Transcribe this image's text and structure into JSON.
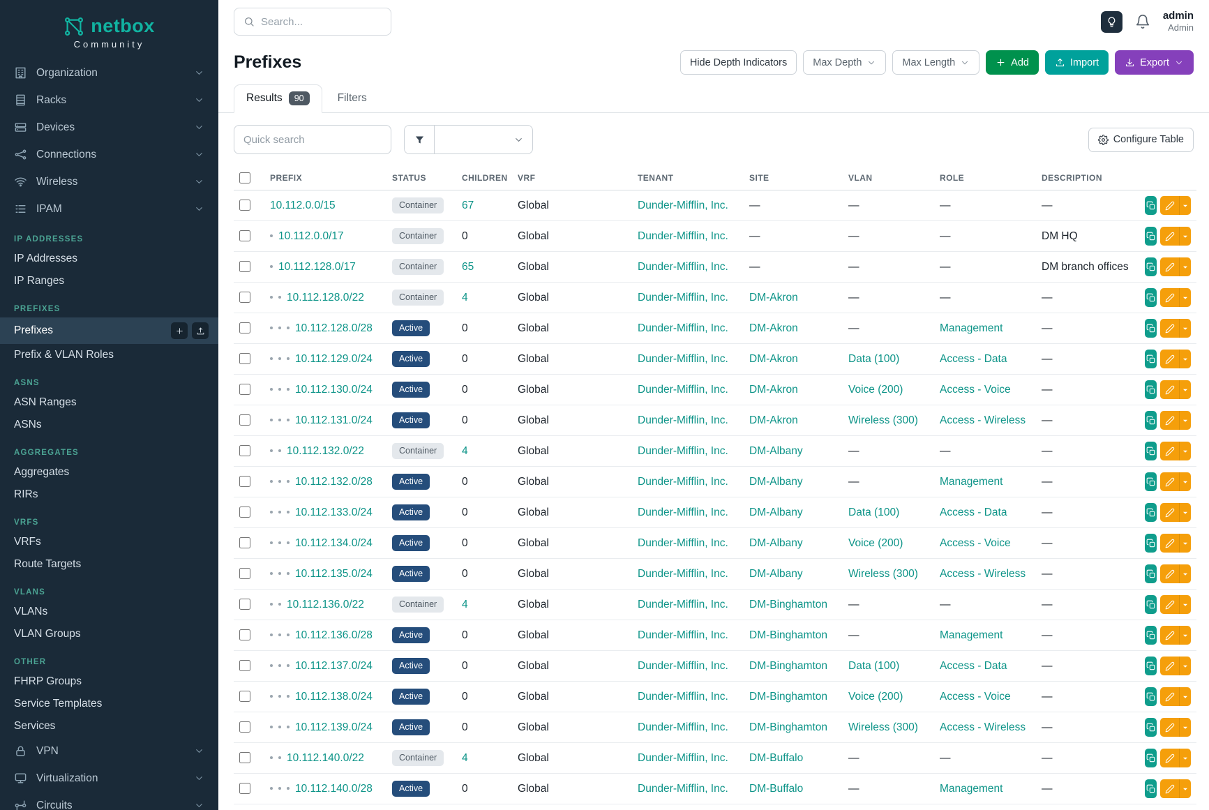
{
  "brand": {
    "name": "netbox",
    "subtitle": "Community",
    "logo_icon": "netbox-logo-icon"
  },
  "topbar": {
    "search_placeholder": "Search...",
    "theme_toggle_icon": "lightbulb-icon",
    "notifications_icon": "bell-icon",
    "user": {
      "name": "admin",
      "role": "Admin"
    }
  },
  "sidebar": {
    "active_item": "Prefixes",
    "top_items": [
      {
        "label": "Organization",
        "icon": "building-icon"
      },
      {
        "label": "Racks",
        "icon": "rack-icon"
      },
      {
        "label": "Devices",
        "icon": "devices-icon"
      },
      {
        "label": "Connections",
        "icon": "connections-icon"
      },
      {
        "label": "Wireless",
        "icon": "wifi-icon"
      },
      {
        "label": "IPAM",
        "icon": "ipam-icon"
      }
    ],
    "sections": [
      {
        "title": "IP ADDRESSES",
        "items": [
          "IP Addresses",
          "IP Ranges"
        ]
      },
      {
        "title": "PREFIXES",
        "items": [
          "Prefixes",
          "Prefix & VLAN Roles"
        ]
      },
      {
        "title": "ASNS",
        "items": [
          "ASN Ranges",
          "ASNs"
        ]
      },
      {
        "title": "AGGREGATES",
        "items": [
          "Aggregates",
          "RIRs"
        ]
      },
      {
        "title": "VRFS",
        "items": [
          "VRFs",
          "Route Targets"
        ]
      },
      {
        "title": "VLANS",
        "items": [
          "VLANs",
          "VLAN Groups"
        ]
      },
      {
        "title": "OTHER",
        "items": [
          "FHRP Groups",
          "Service Templates",
          "Services"
        ]
      }
    ],
    "bottom_items": [
      {
        "label": "VPN",
        "icon": "vpn-icon"
      },
      {
        "label": "Virtualization",
        "icon": "virtualization-icon"
      },
      {
        "label": "Circuits",
        "icon": "circuits-icon"
      }
    ]
  },
  "page": {
    "title": "Prefixes",
    "toolbar": {
      "hide_depth_label": "Hide Depth Indicators",
      "max_depth_label": "Max Depth",
      "max_length_label": "Max Length",
      "add_label": "Add",
      "import_label": "Import",
      "export_label": "Export"
    },
    "tabs": [
      {
        "label": "Results",
        "badge": "90"
      },
      {
        "label": "Filters"
      }
    ],
    "filters": {
      "quick_search_placeholder": "Quick search",
      "configure_table_label": "Configure Table"
    }
  },
  "colors": {
    "accent_teal": "#0d9488",
    "sidebar_bg": "#1a2a38",
    "active_badge": "#254d7b",
    "container_badge_bg": "#e4e8ec",
    "add_green": "#00914d",
    "import_teal": "#00a19b",
    "export_purple": "#8540bb",
    "edit_orange": "#f59f0b"
  },
  "table": {
    "columns": [
      "PREFIX",
      "STATUS",
      "CHILDREN",
      "VRF",
      "TENANT",
      "SITE",
      "VLAN",
      "ROLE",
      "DESCRIPTION"
    ],
    "row_action_icons": [
      "copy-icon",
      "pencil-icon",
      "caret-down-icon"
    ],
    "rows": [
      {
        "depth": 0,
        "prefix": "10.112.0.0/15",
        "status": "Container",
        "children": "67",
        "vrf": "Global",
        "tenant": "Dunder-Mifflin, Inc.",
        "site": "—",
        "vlan": "—",
        "role": "—",
        "description": "—"
      },
      {
        "depth": 1,
        "prefix": "10.112.0.0/17",
        "status": "Container",
        "children": "0",
        "vrf": "Global",
        "tenant": "Dunder-Mifflin, Inc.",
        "site": "—",
        "vlan": "—",
        "role": "—",
        "description": "DM HQ"
      },
      {
        "depth": 1,
        "prefix": "10.112.128.0/17",
        "status": "Container",
        "children": "65",
        "vrf": "Global",
        "tenant": "Dunder-Mifflin, Inc.",
        "site": "—",
        "vlan": "—",
        "role": "—",
        "description": "DM branch offices"
      },
      {
        "depth": 2,
        "prefix": "10.112.128.0/22",
        "status": "Container",
        "children": "4",
        "vrf": "Global",
        "tenant": "Dunder-Mifflin, Inc.",
        "site": "DM-Akron",
        "vlan": "—",
        "role": "—",
        "description": "—"
      },
      {
        "depth": 3,
        "prefix": "10.112.128.0/28",
        "status": "Active",
        "children": "0",
        "vrf": "Global",
        "tenant": "Dunder-Mifflin, Inc.",
        "site": "DM-Akron",
        "vlan": "—",
        "role": "Management",
        "description": "—"
      },
      {
        "depth": 3,
        "prefix": "10.112.129.0/24",
        "status": "Active",
        "children": "0",
        "vrf": "Global",
        "tenant": "Dunder-Mifflin, Inc.",
        "site": "DM-Akron",
        "vlan": "Data (100)",
        "role": "Access - Data",
        "description": "—"
      },
      {
        "depth": 3,
        "prefix": "10.112.130.0/24",
        "status": "Active",
        "children": "0",
        "vrf": "Global",
        "tenant": "Dunder-Mifflin, Inc.",
        "site": "DM-Akron",
        "vlan": "Voice (200)",
        "role": "Access - Voice",
        "description": "—"
      },
      {
        "depth": 3,
        "prefix": "10.112.131.0/24",
        "status": "Active",
        "children": "0",
        "vrf": "Global",
        "tenant": "Dunder-Mifflin, Inc.",
        "site": "DM-Akron",
        "vlan": "Wireless (300)",
        "role": "Access - Wireless",
        "description": "—"
      },
      {
        "depth": 2,
        "prefix": "10.112.132.0/22",
        "status": "Container",
        "children": "4",
        "vrf": "Global",
        "tenant": "Dunder-Mifflin, Inc.",
        "site": "DM-Albany",
        "vlan": "—",
        "role": "—",
        "description": "—"
      },
      {
        "depth": 3,
        "prefix": "10.112.132.0/28",
        "status": "Active",
        "children": "0",
        "vrf": "Global",
        "tenant": "Dunder-Mifflin, Inc.",
        "site": "DM-Albany",
        "vlan": "—",
        "role": "Management",
        "description": "—"
      },
      {
        "depth": 3,
        "prefix": "10.112.133.0/24",
        "status": "Active",
        "children": "0",
        "vrf": "Global",
        "tenant": "Dunder-Mifflin, Inc.",
        "site": "DM-Albany",
        "vlan": "Data (100)",
        "role": "Access - Data",
        "description": "—"
      },
      {
        "depth": 3,
        "prefix": "10.112.134.0/24",
        "status": "Active",
        "children": "0",
        "vrf": "Global",
        "tenant": "Dunder-Mifflin, Inc.",
        "site": "DM-Albany",
        "vlan": "Voice (200)",
        "role": "Access - Voice",
        "description": "—"
      },
      {
        "depth": 3,
        "prefix": "10.112.135.0/24",
        "status": "Active",
        "children": "0",
        "vrf": "Global",
        "tenant": "Dunder-Mifflin, Inc.",
        "site": "DM-Albany",
        "vlan": "Wireless (300)",
        "role": "Access - Wireless",
        "description": "—"
      },
      {
        "depth": 2,
        "prefix": "10.112.136.0/22",
        "status": "Container",
        "children": "4",
        "vrf": "Global",
        "tenant": "Dunder-Mifflin, Inc.",
        "site": "DM-Binghamton",
        "vlan": "—",
        "role": "—",
        "description": "—"
      },
      {
        "depth": 3,
        "prefix": "10.112.136.0/28",
        "status": "Active",
        "children": "0",
        "vrf": "Global",
        "tenant": "Dunder-Mifflin, Inc.",
        "site": "DM-Binghamton",
        "vlan": "—",
        "role": "Management",
        "description": "—"
      },
      {
        "depth": 3,
        "prefix": "10.112.137.0/24",
        "status": "Active",
        "children": "0",
        "vrf": "Global",
        "tenant": "Dunder-Mifflin, Inc.",
        "site": "DM-Binghamton",
        "vlan": "Data (100)",
        "role": "Access - Data",
        "description": "—"
      },
      {
        "depth": 3,
        "prefix": "10.112.138.0/24",
        "status": "Active",
        "children": "0",
        "vrf": "Global",
        "tenant": "Dunder-Mifflin, Inc.",
        "site": "DM-Binghamton",
        "vlan": "Voice (200)",
        "role": "Access - Voice",
        "description": "—"
      },
      {
        "depth": 3,
        "prefix": "10.112.139.0/24",
        "status": "Active",
        "children": "0",
        "vrf": "Global",
        "tenant": "Dunder-Mifflin, Inc.",
        "site": "DM-Binghamton",
        "vlan": "Wireless (300)",
        "role": "Access - Wireless",
        "description": "—"
      },
      {
        "depth": 2,
        "prefix": "10.112.140.0/22",
        "status": "Container",
        "children": "4",
        "vrf": "Global",
        "tenant": "Dunder-Mifflin, Inc.",
        "site": "DM-Buffalo",
        "vlan": "—",
        "role": "—",
        "description": "—"
      },
      {
        "depth": 3,
        "prefix": "10.112.140.0/28",
        "status": "Active",
        "children": "0",
        "vrf": "Global",
        "tenant": "Dunder-Mifflin, Inc.",
        "site": "DM-Buffalo",
        "vlan": "—",
        "role": "Management",
        "description": "—"
      }
    ]
  }
}
